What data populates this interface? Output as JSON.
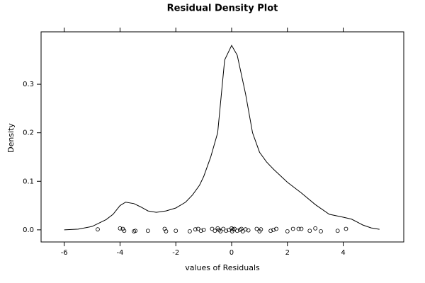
{
  "chart_data": {
    "type": "line",
    "title": "Residual Density Plot",
    "xlabel": "values of Residuals",
    "ylabel": "Density",
    "xlim": [
      -6.83,
      6.17
    ],
    "ylim": [
      -0.025,
      0.408
    ],
    "xticks": [
      -6,
      -4,
      -2,
      0,
      2,
      4
    ],
    "yticks": [
      {
        "value": 0,
        "label": "0.0"
      },
      0.1,
      0.2,
      0.3
    ],
    "series": [
      {
        "type": "line",
        "color": "#000000",
        "x": [
          -6,
          -5.5,
          -5,
          -4.5,
          -4.25,
          -4,
          -3.8,
          -3.5,
          -3.25,
          -3,
          -2.7,
          -2.35,
          -2,
          -1.65,
          -1.4,
          -1.15,
          -1,
          -0.75,
          -0.5,
          -0.25,
          0,
          0.2,
          0.5,
          0.75,
          1,
          1.25,
          1.5,
          2,
          2.5,
          3,
          3.5,
          4,
          4.3,
          4.7,
          5,
          5.3
        ],
        "values": [
          0,
          0.0015,
          0.007,
          0.021,
          0.032,
          0.05,
          0.057,
          0.054,
          0.047,
          0.039,
          0.036,
          0.039,
          0.045,
          0.057,
          0.072,
          0.092,
          0.11,
          0.15,
          0.2,
          0.35,
          0.38,
          0.36,
          0.28,
          0.2,
          0.16,
          0.14,
          0.125,
          0.098,
          0.076,
          0.052,
          0.032,
          0.026,
          0.022,
          0.01,
          0.004,
          0.001
        ]
      },
      {
        "type": "scatter",
        "color": "#000000",
        "x": [
          -4.8,
          -4.0,
          -3.9,
          -3.85,
          -3.5,
          -3.45,
          -3.0,
          -2.4,
          -2.35,
          -2.0,
          -1.5,
          -1.3,
          -1.2,
          -1.1,
          -1.0,
          -0.7,
          -0.6,
          -0.5,
          -0.45,
          -0.4,
          -0.3,
          -0.2,
          -0.1,
          0.0,
          0.02,
          0.05,
          0.1,
          0.2,
          0.3,
          0.35,
          0.4,
          0.5,
          0.6,
          0.9,
          1.0,
          1.05,
          1.4,
          1.5,
          1.6,
          2.0,
          2.2,
          2.4,
          2.5,
          2.8,
          3.0,
          3.2,
          3.8,
          4.1
        ],
        "values": [
          0.001,
          0.003,
          0.002,
          -0.002,
          -0.003,
          -0.002,
          -0.002,
          0.002,
          -0.003,
          -0.002,
          -0.003,
          0.001,
          0.002,
          -0.002,
          0.0,
          0.002,
          -0.002,
          0.003,
          0.0,
          -0.003,
          0.002,
          -0.002,
          0.0,
          0.003,
          -0.003,
          0.001,
          0.002,
          -0.002,
          0.0,
          0.002,
          -0.003,
          0.001,
          -0.001,
          0.002,
          -0.003,
          0.001,
          -0.002,
          0.0,
          0.002,
          -0.003,
          0.002,
          0.002,
          0.002,
          -0.002,
          0.003,
          -0.003,
          -0.002,
          0.002
        ]
      }
    ]
  }
}
